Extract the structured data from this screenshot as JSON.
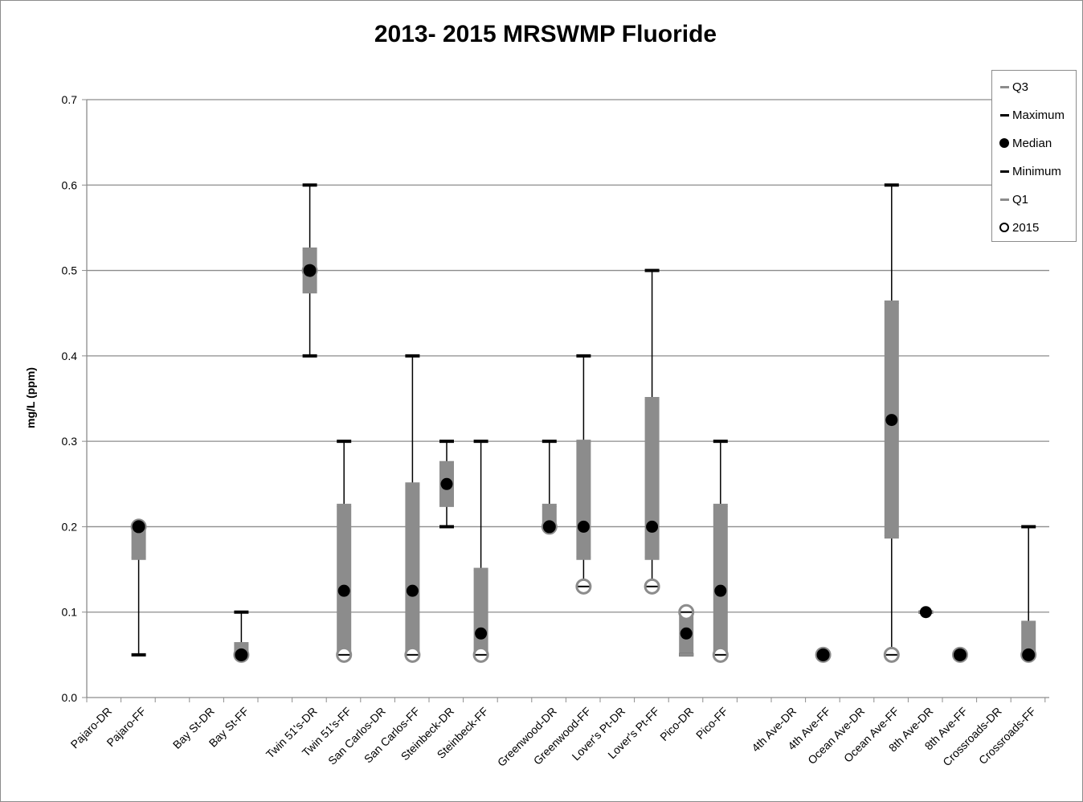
{
  "chart_data": {
    "type": "box",
    "title": "2013- 2015 MRSWMP Fluoride",
    "ylabel": "mg/L  (ppm)",
    "xlabel": "",
    "ylim": [
      0,
      0.7
    ],
    "yticks": [
      "0.0",
      "0.1",
      "0.2",
      "0.3",
      "0.4",
      "0.5",
      "0.6",
      "0.7"
    ],
    "grid": true,
    "legend_position": "top-right",
    "legend": [
      "Q3",
      "Maximum",
      "Median",
      "Minimum",
      "Q1",
      "2015"
    ],
    "colors": {
      "box": "#8c8c8c",
      "whisker": "#000000",
      "grid": "#8c8c8c"
    },
    "categories": [
      {
        "label": "Pajaro-DR",
        "slot": 0
      },
      {
        "label": "Pajaro-FF",
        "slot": 1,
        "min": 0.05,
        "q1": 0.163,
        "median": 0.2,
        "q3": 0.2,
        "max": 0.2,
        "y2015": 0.2
      },
      {
        "label": "Bay St-DR",
        "slot": 3
      },
      {
        "label": "Bay St-FF",
        "slot": 4,
        "min": 0.05,
        "q1": 0.05,
        "median": 0.05,
        "q3": 0.063,
        "max": 0.1,
        "y2015": 0.05
      },
      {
        "label": "Twin 51's-DR",
        "slot": 6,
        "min": 0.4,
        "q1": 0.475,
        "median": 0.5,
        "q3": 0.525,
        "max": 0.6,
        "y2015": 0.5
      },
      {
        "label": "Twin 51's-FF",
        "slot": 7,
        "min": 0.05,
        "q1": 0.05,
        "median": 0.125,
        "q3": 0.225,
        "max": 0.3,
        "y2015": 0.05
      },
      {
        "label": "San Carlos-DR",
        "slot": 8
      },
      {
        "label": "San Carlos-FF",
        "slot": 9,
        "min": 0.05,
        "q1": 0.05,
        "median": 0.125,
        "q3": 0.25,
        "max": 0.4,
        "y2015": 0.05
      },
      {
        "label": "Steinbeck-DR",
        "slot": 10,
        "min": 0.2,
        "q1": 0.225,
        "median": 0.25,
        "q3": 0.275,
        "max": 0.3
      },
      {
        "label": "Steinbeck-FF",
        "slot": 11,
        "min": 0.05,
        "q1": 0.05,
        "median": 0.075,
        "q3": 0.15,
        "max": 0.3,
        "y2015": 0.05
      },
      {
        "label": "Greenwood-DR",
        "slot": 13,
        "min": 0.2,
        "q1": 0.2,
        "median": 0.2,
        "q3": 0.225,
        "max": 0.3,
        "y2015": 0.2
      },
      {
        "label": "Greenwood-FF",
        "slot": 14,
        "min": 0.13,
        "q1": 0.163,
        "median": 0.2,
        "q3": 0.3,
        "max": 0.4,
        "y2015": 0.13
      },
      {
        "label": "Lover's Pt-DR",
        "slot": 15
      },
      {
        "label": "Lover's Pt-FF",
        "slot": 16,
        "min": 0.13,
        "q1": 0.163,
        "median": 0.2,
        "q3": 0.35,
        "max": 0.5,
        "y2015": 0.13
      },
      {
        "label": "Pico-DR",
        "slot": 17,
        "min": 0.05,
        "q1": 0.05,
        "median": 0.075,
        "q3": 0.1,
        "max": 0.1,
        "y2015": 0.1
      },
      {
        "label": "Pico-FF",
        "slot": 18,
        "min": 0.05,
        "q1": 0.05,
        "median": 0.125,
        "q3": 0.225,
        "max": 0.3,
        "y2015": 0.05
      },
      {
        "label": "4th Ave-DR",
        "slot": 20
      },
      {
        "label": "4th Ave-FF",
        "slot": 21,
        "min": 0.05,
        "q1": 0.05,
        "median": 0.05,
        "q3": 0.05,
        "max": 0.05,
        "y2015": 0.05
      },
      {
        "label": "Ocean Ave-DR",
        "slot": 22
      },
      {
        "label": "Ocean Ave-FF",
        "slot": 23,
        "min": 0.05,
        "q1": 0.188,
        "median": 0.325,
        "q3": 0.463,
        "max": 0.6,
        "y2015": 0.05
      },
      {
        "label": "8th Ave-DR",
        "slot": 24,
        "min": 0.1,
        "q1": 0.1,
        "median": 0.1,
        "q3": 0.1,
        "max": 0.1
      },
      {
        "label": "8th Ave-FF",
        "slot": 25,
        "min": 0.05,
        "q1": 0.05,
        "median": 0.05,
        "q3": 0.05,
        "max": 0.05,
        "y2015": 0.05
      },
      {
        "label": "Crossroads-DR",
        "slot": 26
      },
      {
        "label": "Crossroads-FF",
        "slot": 27,
        "min": 0.05,
        "q1": 0.05,
        "median": 0.05,
        "q3": 0.088,
        "max": 0.2,
        "y2015": 0.05
      }
    ]
  }
}
